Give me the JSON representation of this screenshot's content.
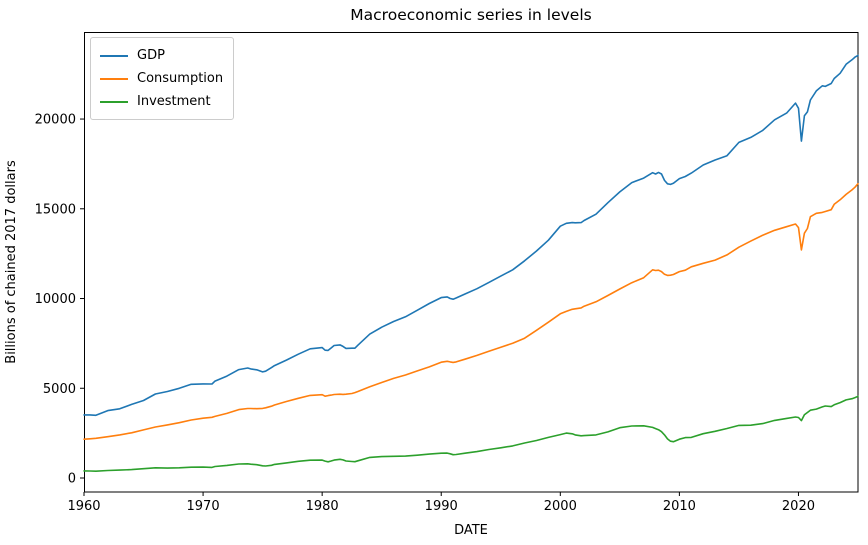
{
  "chart_data": {
    "type": "line",
    "title": "Macroeconomic series in levels",
    "xlabel": "DATE",
    "ylabel": "Billions of chained 2017 dollars",
    "x_units": "decimal year",
    "xlim": [
      1960,
      2025
    ],
    "ylim": [
      -780,
      24850
    ],
    "x_ticks": [
      1960,
      1970,
      1980,
      1990,
      2000,
      2010,
      2020
    ],
    "y_ticks": [
      0,
      5000,
      10000,
      15000,
      20000
    ],
    "grid": false,
    "legend_position": "upper-left",
    "axis_color": "#000000",
    "x": [
      1960,
      1960.5,
      1961,
      1962,
      1963,
      1964,
      1965,
      1966,
      1967,
      1968,
      1969,
      1970,
      1970.75,
      1971,
      1972,
      1973,
      1973.75,
      1974,
      1974.5,
      1975,
      1975.25,
      1975.75,
      1976,
      1977,
      1978,
      1979,
      1980,
      1980.25,
      1980.5,
      1980.75,
      1981,
      1981.5,
      1981.75,
      1982,
      1982.5,
      1982.75,
      1983,
      1984,
      1985,
      1986,
      1987,
      1988,
      1989,
      1990,
      1990.5,
      1990.75,
      1991,
      1991.25,
      1992,
      1993,
      1994,
      1995,
      1996,
      1997,
      1998,
      1999,
      2000,
      2000.5,
      2001,
      2001.25,
      2001.75,
      2002,
      2003,
      2004,
      2005,
      2006,
      2007,
      2007.75,
      2008,
      2008.25,
      2008.5,
      2008.75,
      2009,
      2009.25,
      2009.5,
      2010,
      2010.5,
      2011,
      2012,
      2013,
      2014,
      2015,
      2016,
      2017,
      2018,
      2019,
      2019.75,
      2020,
      2020.25,
      2020.5,
      2020.75,
      2021,
      2021.5,
      2022,
      2022.25,
      2022.75,
      2023,
      2023.5,
      2024,
      2024.5,
      2024.75,
      2025
    ],
    "series": [
      {
        "name": "GDP",
        "color": "#1f77b4",
        "values": [
          3517,
          3515,
          3493,
          3758,
          3857,
          4103,
          4318,
          4683,
          4818,
          4999,
          5222,
          5243,
          5240,
          5400,
          5680,
          6040,
          6130,
          6080,
          6030,
          5910,
          5950,
          6150,
          6260,
          6570,
          6900,
          7200,
          7266,
          7118,
          7108,
          7243,
          7385,
          7414,
          7334,
          7222,
          7230,
          7233,
          7400,
          8020,
          8400,
          8720,
          8980,
          9350,
          9720,
          10050,
          10090,
          10000,
          9960,
          10030,
          10250,
          10550,
          10900,
          11250,
          11600,
          12100,
          12650,
          13250,
          14030,
          14190,
          14230,
          14220,
          14230,
          14350,
          14700,
          15340,
          15940,
          16460,
          16710,
          17010,
          16940,
          17030,
          16940,
          16580,
          16390,
          16360,
          16420,
          16680,
          16800,
          16990,
          17440,
          17720,
          17960,
          18700,
          18980,
          19370,
          19960,
          20330,
          20890,
          20600,
          18770,
          20180,
          20400,
          21060,
          21570,
          21850,
          21820,
          21980,
          22260,
          22550,
          23050,
          23300,
          23450,
          23540
        ]
      },
      {
        "name": "Consumption",
        "color": "#ff7f0e",
        "values": [
          2160,
          2185,
          2210,
          2300,
          2400,
          2520,
          2680,
          2840,
          2960,
          3080,
          3230,
          3330,
          3380,
          3430,
          3600,
          3810,
          3870,
          3870,
          3860,
          3880,
          3910,
          4000,
          4070,
          4260,
          4440,
          4600,
          4640,
          4560,
          4590,
          4620,
          4650,
          4670,
          4660,
          4670,
          4710,
          4760,
          4820,
          5080,
          5320,
          5550,
          5740,
          5970,
          6190,
          6450,
          6500,
          6470,
          6440,
          6470,
          6620,
          6830,
          7060,
          7280,
          7510,
          7790,
          8230,
          8680,
          9150,
          9280,
          9400,
          9430,
          9480,
          9570,
          9820,
          10170,
          10530,
          10880,
          11160,
          11600,
          11560,
          11580,
          11500,
          11350,
          11290,
          11300,
          11340,
          11500,
          11580,
          11770,
          11960,
          12140,
          12430,
          12860,
          13200,
          13530,
          13800,
          14000,
          14150,
          13950,
          12710,
          13640,
          13900,
          14560,
          14750,
          14800,
          14850,
          14950,
          15250,
          15500,
          15800,
          16050,
          16200,
          16400
        ]
      },
      {
        "name": "Investment",
        "color": "#2ca02c",
        "values": [
          394,
          390,
          380,
          420,
          441,
          470,
          520,
          568,
          550,
          570,
          600,
          610,
          590,
          640,
          700,
          780,
          790,
          770,
          740,
          680,
          670,
          710,
          760,
          840,
          930,
          990,
          1000,
          940,
          900,
          950,
          1000,
          1040,
          1010,
          950,
          920,
          910,
          960,
          1150,
          1190,
          1210,
          1220,
          1270,
          1330,
          1380,
          1390,
          1350,
          1300,
          1310,
          1380,
          1470,
          1590,
          1680,
          1790,
          1950,
          2090,
          2260,
          2420,
          2500,
          2460,
          2400,
          2350,
          2360,
          2400,
          2570,
          2800,
          2900,
          2910,
          2820,
          2750,
          2690,
          2580,
          2400,
          2180,
          2050,
          2020,
          2160,
          2250,
          2260,
          2470,
          2600,
          2760,
          2930,
          2940,
          3030,
          3210,
          3320,
          3400,
          3370,
          3200,
          3520,
          3650,
          3780,
          3840,
          3960,
          4010,
          3980,
          4080,
          4200,
          4350,
          4420,
          4480,
          4550
        ]
      }
    ]
  }
}
